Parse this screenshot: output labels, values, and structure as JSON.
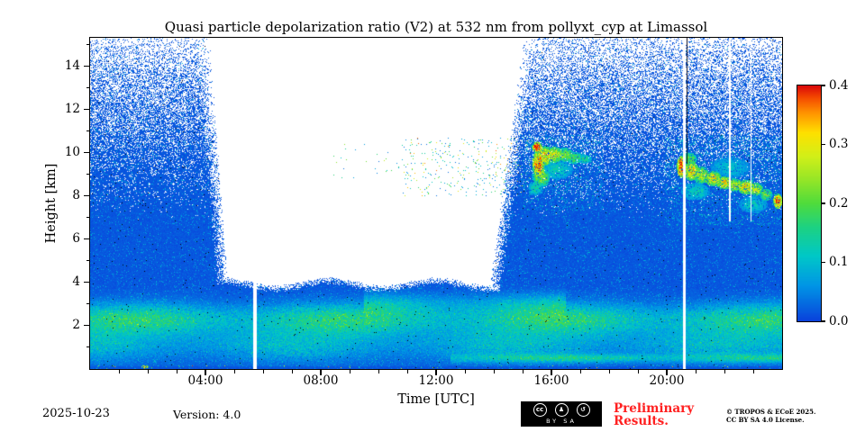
{
  "chart_data": {
    "type": "heatmap",
    "title": "Quasi particle depolarization ratio (V2) at 532 nm from pollyxt_cyp at Limassol",
    "xlabel": "Time [UTC]",
    "ylabel": "Height [km]",
    "xlim_hours": [
      0,
      24
    ],
    "ylim_km": [
      0,
      15.3
    ],
    "xticks": [
      {
        "hour": 4,
        "label": "04:00"
      },
      {
        "hour": 8,
        "label": "08:00"
      },
      {
        "hour": 12,
        "label": "12:00"
      },
      {
        "hour": 16,
        "label": "16:00"
      },
      {
        "hour": 20,
        "label": "20:00"
      }
    ],
    "x_minor_step_hours": 1,
    "yticks": [
      {
        "km": 2,
        "label": "2"
      },
      {
        "km": 4,
        "label": "4"
      },
      {
        "km": 6,
        "label": "6"
      },
      {
        "km": 8,
        "label": "8"
      },
      {
        "km": 10,
        "label": "10"
      },
      {
        "km": 12,
        "label": "12"
      },
      {
        "km": 14,
        "label": "14"
      }
    ],
    "y_minor_step_km": 1,
    "colorbar": {
      "vmin": 0.0,
      "vmax": 0.4,
      "ticks": [
        {
          "value": 0.0,
          "label": "0.0"
        },
        {
          "value": 0.1,
          "label": "0.1"
        },
        {
          "value": 0.2,
          "label": "0.2"
        },
        {
          "value": 0.3,
          "label": "0.3"
        },
        {
          "value": 0.4,
          "label": "0.4"
        }
      ]
    },
    "colormap_stops": [
      [
        0.0,
        "#0a43dc"
      ],
      [
        0.06,
        "#0096e6"
      ],
      [
        0.11,
        "#00c8c8"
      ],
      [
        0.16,
        "#1ed282"
      ],
      [
        0.2,
        "#50dc3c"
      ],
      [
        0.24,
        "#96e628"
      ],
      [
        0.28,
        "#d2f019"
      ],
      [
        0.32,
        "#ffe100"
      ],
      [
        0.355,
        "#ff9100"
      ],
      [
        0.38,
        "#f54a00"
      ],
      [
        0.4,
        "#dc0a0a"
      ]
    ],
    "daytime_gap": {
      "left_top_t": 3.7,
      "left_base_t": 4.35,
      "right_top_t": 15.5,
      "right_base_t": 14.3,
      "h_base_km": 3.7,
      "edge_softness_t": 0.45,
      "base_softness_km": 0.35
    },
    "noise": {
      "seed": 1337,
      "white_h0": 6.8,
      "white_span": 8.5,
      "white_max": 0.82,
      "white_pow": 1.35,
      "black_prob": 0.004,
      "cyan_dot_prob": 0.07,
      "base_v": 0.004,
      "base_var": 0.02,
      "dot_v": 0.03,
      "dot_var": 0.07,
      "blob_hole_prob": 0.1
    },
    "layers": [
      {
        "h_center": 2.3,
        "h_sigma": 0.5,
        "amp": 0.14,
        "t_lo": 0,
        "t_hi": 24,
        "phase": 0.3
      },
      {
        "h_center": 1.1,
        "h_sigma": 0.55,
        "amp": 0.08,
        "t_lo": 0,
        "t_hi": 24,
        "phase": 1.8
      },
      {
        "h_center": 0.5,
        "h_sigma": 0.13,
        "amp": 0.1,
        "t_lo": 12.5,
        "t_hi": 24,
        "phase": 0
      },
      {
        "h_center": 3.0,
        "h_sigma": 0.35,
        "amp": 0.06,
        "t_lo": 9.5,
        "t_hi": 16.5,
        "phase": 0
      }
    ],
    "features": [
      {
        "t": 15.5,
        "h": 10.25,
        "rt": 0.18,
        "rh": 0.25,
        "v": 0.4
      },
      {
        "t": 15.55,
        "h": 9.45,
        "rt": 0.22,
        "rh": 0.7,
        "v": 0.34
      },
      {
        "t": 15.8,
        "h": 9.85,
        "rt": 0.28,
        "rh": 0.45,
        "v": 0.3
      },
      {
        "t": 15.65,
        "h": 8.85,
        "rt": 0.3,
        "rh": 0.45,
        "v": 0.22
      },
      {
        "t": 16.1,
        "h": 9.9,
        "rt": 0.3,
        "rh": 0.38,
        "v": 0.27
      },
      {
        "t": 16.45,
        "h": 9.9,
        "rt": 0.32,
        "rh": 0.33,
        "v": 0.22
      },
      {
        "t": 16.8,
        "h": 9.75,
        "rt": 0.3,
        "rh": 0.28,
        "v": 0.18
      },
      {
        "t": 17.15,
        "h": 9.7,
        "rt": 0.25,
        "rh": 0.22,
        "v": 0.15
      },
      {
        "t": 16.2,
        "h": 9.2,
        "rt": 0.55,
        "rh": 0.45,
        "v": 0.12
      },
      {
        "t": 15.45,
        "h": 8.35,
        "rt": 0.25,
        "rh": 0.35,
        "v": 0.13
      },
      {
        "t": 20.5,
        "h": 9.35,
        "rt": 0.15,
        "rh": 0.5,
        "v": 0.4
      },
      {
        "t": 20.85,
        "h": 9.15,
        "rt": 0.28,
        "rh": 0.45,
        "v": 0.3
      },
      {
        "t": 20.8,
        "h": 9.7,
        "rt": 0.25,
        "rh": 0.3,
        "v": 0.2
      },
      {
        "t": 21.2,
        "h": 8.95,
        "rt": 0.28,
        "rh": 0.4,
        "v": 0.25
      },
      {
        "t": 21.6,
        "h": 8.8,
        "rt": 0.3,
        "rh": 0.35,
        "v": 0.29
      },
      {
        "t": 22.0,
        "h": 8.6,
        "rt": 0.3,
        "rh": 0.3,
        "v": 0.3
      },
      {
        "t": 22.35,
        "h": 8.5,
        "rt": 0.3,
        "rh": 0.3,
        "v": 0.26
      },
      {
        "t": 22.75,
        "h": 8.4,
        "rt": 0.3,
        "rh": 0.35,
        "v": 0.3
      },
      {
        "t": 23.1,
        "h": 8.3,
        "rt": 0.25,
        "rh": 0.3,
        "v": 0.26
      },
      {
        "t": 23.45,
        "h": 8.05,
        "rt": 0.22,
        "rh": 0.28,
        "v": 0.22
      },
      {
        "t": 23.85,
        "h": 7.75,
        "rt": 0.16,
        "rh": 0.35,
        "v": 0.38
      },
      {
        "t": 21.0,
        "h": 8.2,
        "rt": 0.5,
        "rh": 0.4,
        "v": 0.12
      },
      {
        "t": 22.2,
        "h": 9.3,
        "rt": 0.7,
        "rh": 0.5,
        "v": 0.1
      },
      {
        "t": 23.0,
        "h": 7.6,
        "rt": 0.5,
        "rh": 0.4,
        "v": 0.11
      },
      {
        "t": 1.9,
        "h": 0.1,
        "rt": 0.12,
        "rh": 0.08,
        "v": 0.33
      }
    ],
    "speckle_regions": [
      {
        "t_lo": 10.8,
        "t_hi": 15.25,
        "h_lo": 8.0,
        "h_hi": 10.7,
        "density": 0.035,
        "v_lo": 0.03,
        "v_hi": 0.38
      },
      {
        "t_lo": 8.2,
        "t_hi": 10.8,
        "h_lo": 8.8,
        "h_hi": 10.4,
        "density": 0.008,
        "v_lo": 0.03,
        "v_hi": 0.3
      },
      {
        "t_lo": 15.0,
        "t_hi": 17.8,
        "h_lo": 7.3,
        "h_hi": 10.8,
        "density": 0.18,
        "v_lo": 0.02,
        "v_hi": 0.14
      },
      {
        "t_lo": 19.9,
        "t_hi": 24.0,
        "h_lo": 6.6,
        "h_hi": 10.8,
        "density": 0.2,
        "v_lo": 0.02,
        "v_hi": 0.14
      },
      {
        "t_lo": 0.0,
        "t_hi": 24.0,
        "h_lo": 0.0,
        "h_hi": 0.16,
        "density": 0.02,
        "v_lo": 0.1,
        "v_hi": 0.4
      }
    ],
    "gap_stripes": [
      {
        "t": 5.72,
        "width_h": 0.13,
        "h_lo": 0.0,
        "h_hi": 6.2
      },
      {
        "t": 20.62,
        "width_h": 0.1,
        "h_lo": 0.0,
        "h_hi": 15.3
      },
      {
        "t": 22.18,
        "width_h": 0.05,
        "h_lo": 6.8,
        "h_hi": 15.3
      },
      {
        "t": 22.92,
        "width_h": 0.04,
        "h_lo": 6.8,
        "h_hi": 15.3
      }
    ],
    "dark_stripes": [
      {
        "t": 20.705,
        "width_h": 0.035,
        "h_lo": 9.5,
        "h_hi": 15.3
      }
    ]
  },
  "footer": {
    "date": "2025-10-23",
    "version": "Version: 4.0",
    "cc": {
      "icons": [
        {
          "name": "cc-icon",
          "glyph": "cc"
        },
        {
          "name": "cc-by-person-icon",
          "glyph": "♟"
        },
        {
          "name": "cc-sa-arrow-icon",
          "glyph": "↺"
        }
      ],
      "label": "BY SA"
    },
    "preliminary_line1": "Preliminary",
    "preliminary_line2": "Results.",
    "preliminary_color": "#ff2020",
    "copyright_line1": "© TROPOS & ECoE 2025.",
    "copyright_line2": "CC BY SA 4.0 License."
  }
}
